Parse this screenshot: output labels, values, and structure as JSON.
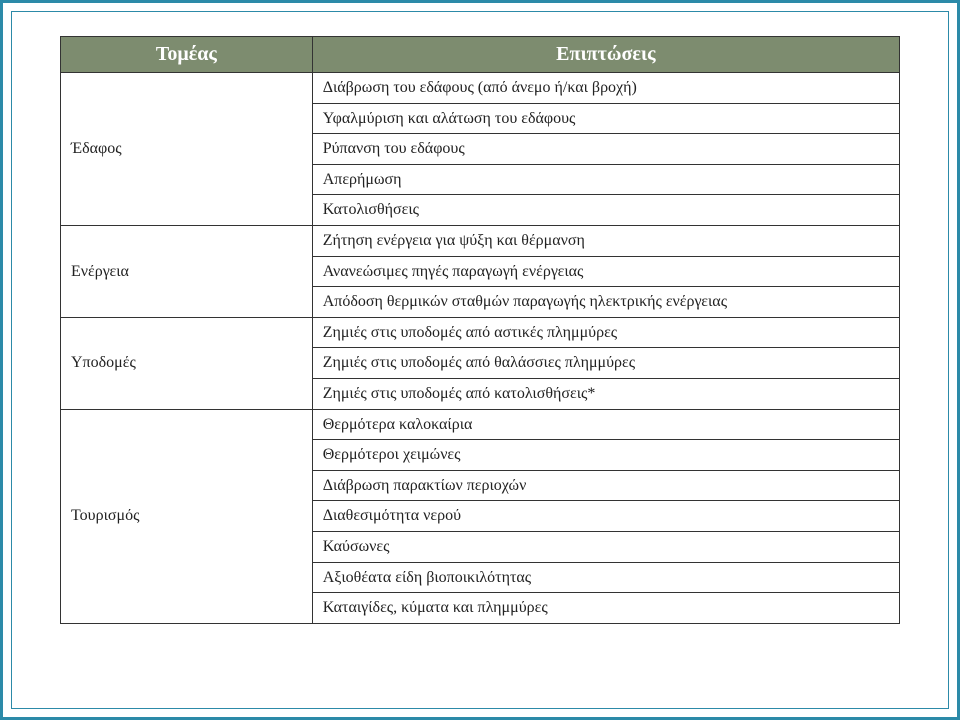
{
  "table": {
    "header": {
      "sector": "Τομέας",
      "impact": "Επιπτώσεις"
    },
    "colors": {
      "header_bg": "#7d8c6f",
      "header_fg": "#ffffff",
      "border": "#333333",
      "frame": "#2c8aa8",
      "page_bg": "#ffffff",
      "text": "#222222"
    },
    "font": {
      "header_size_pt": 20,
      "cell_size_pt": 16,
      "sector_size_pt": 17,
      "family": "serif"
    },
    "col_widths_pct": [
      30,
      70
    ],
    "sectors": [
      {
        "name": "Έδαφος",
        "impacts": [
          "Διάβρωση του εδάφους (από άνεμο ή/και βροχή)",
          "Υφαλμύριση και αλάτωση του εδάφους",
          "Ρύπανση του εδάφους",
          "Απερήμωση",
          "Κατολισθήσεις"
        ]
      },
      {
        "name": "Ενέργεια",
        "impacts": [
          "Ζήτηση ενέργεια για ψύξη και θέρμανση",
          "Ανανεώσιμες πηγές παραγωγή ενέργειας",
          "Απόδοση θερμικών σταθμών παραγωγής ηλεκτρικής ενέργειας"
        ]
      },
      {
        "name": "Υποδομές",
        "impacts": [
          "Ζημιές στις υποδομές από αστικές πλημμύρες",
          "Ζημιές στις υποδομές από θαλάσσιες πλημμύρες",
          "Ζημιές στις υποδομές από κατολισθήσεις*"
        ]
      },
      {
        "name": "Τουρισμός",
        "impacts": [
          "Θερμότερα καλοκαίρια",
          "Θερμότεροι χειμώνες",
          "Διάβρωση παρακτίων περιοχών",
          "Διαθεσιμότητα νερού",
          "Καύσωνες",
          "Αξιοθέατα είδη βιοποικιλότητας",
          "Καταιγίδες, κύματα και πλημμύρες"
        ]
      }
    ]
  }
}
